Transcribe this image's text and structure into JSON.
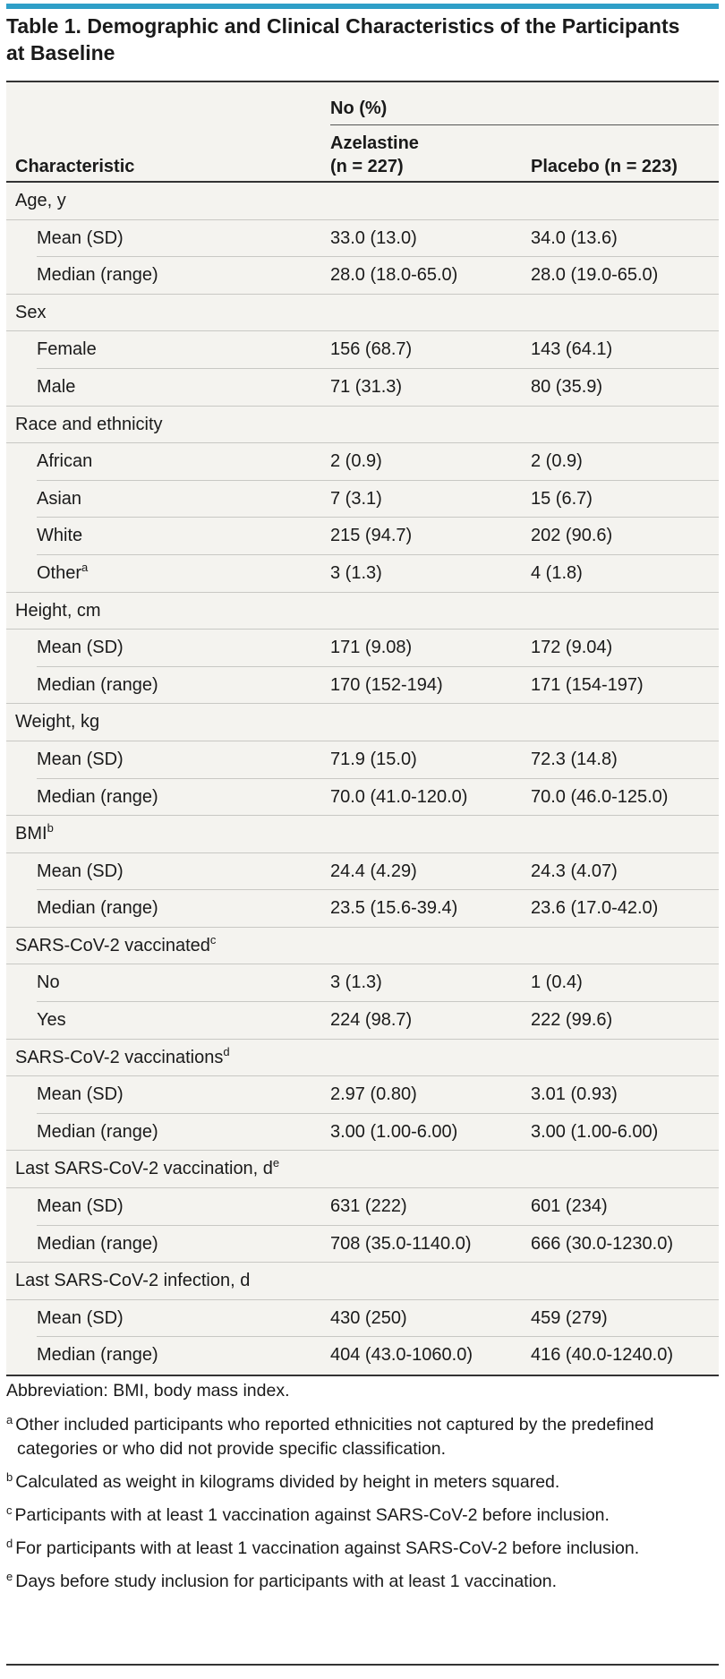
{
  "title": "Table 1. Demographic and Clinical Characteristics of the Participants at Baseline",
  "header": {
    "no_pct": "No (%)",
    "characteristic": "Characteristic",
    "azelastine_line1": "Azelastine",
    "azelastine_line2": "(n = 227)",
    "placebo": "Placebo (n = 223)"
  },
  "groups": [
    {
      "label": "Age, y",
      "sup": "",
      "rows": [
        {
          "label": "Mean (SD)",
          "sup": "",
          "aze": "33.0 (13.0)",
          "pla": "34.0 (13.6)"
        },
        {
          "label": "Median (range)",
          "sup": "",
          "aze": "28.0 (18.0-65.0)",
          "pla": "28.0 (19.0-65.0)"
        }
      ]
    },
    {
      "label": "Sex",
      "sup": "",
      "rows": [
        {
          "label": "Female",
          "sup": "",
          "aze": "156 (68.7)",
          "pla": "143 (64.1)"
        },
        {
          "label": "Male",
          "sup": "",
          "aze": "71 (31.3)",
          "pla": "80 (35.9)"
        }
      ]
    },
    {
      "label": "Race and ethnicity",
      "sup": "",
      "rows": [
        {
          "label": "African",
          "sup": "",
          "aze": "2 (0.9)",
          "pla": "2 (0.9)"
        },
        {
          "label": "Asian",
          "sup": "",
          "aze": "7 (3.1)",
          "pla": "15 (6.7)"
        },
        {
          "label": "White",
          "sup": "",
          "aze": "215 (94.7)",
          "pla": "202 (90.6)"
        },
        {
          "label": "Other",
          "sup": "a",
          "aze": "3 (1.3)",
          "pla": "4 (1.8)"
        }
      ]
    },
    {
      "label": "Height, cm",
      "sup": "",
      "rows": [
        {
          "label": "Mean (SD)",
          "sup": "",
          "aze": "171 (9.08)",
          "pla": "172 (9.04)"
        },
        {
          "label": "Median (range)",
          "sup": "",
          "aze": "170 (152-194)",
          "pla": "171 (154-197)"
        }
      ]
    },
    {
      "label": "Weight, kg",
      "sup": "",
      "rows": [
        {
          "label": "Mean (SD)",
          "sup": "",
          "aze": "71.9 (15.0)",
          "pla": "72.3 (14.8)"
        },
        {
          "label": "Median (range)",
          "sup": "",
          "aze": "70.0 (41.0-120.0)",
          "pla": "70.0 (46.0-125.0)"
        }
      ]
    },
    {
      "label": "BMI",
      "sup": "b",
      "rows": [
        {
          "label": "Mean (SD)",
          "sup": "",
          "aze": "24.4 (4.29)",
          "pla": "24.3 (4.07)"
        },
        {
          "label": "Median (range)",
          "sup": "",
          "aze": "23.5 (15.6-39.4)",
          "pla": "23.6 (17.0-42.0)"
        }
      ]
    },
    {
      "label": "SARS-CoV-2 vaccinated",
      "sup": "c",
      "rows": [
        {
          "label": "No",
          "sup": "",
          "aze": "3 (1.3)",
          "pla": "1 (0.4)"
        },
        {
          "label": "Yes",
          "sup": "",
          "aze": "224 (98.7)",
          "pla": "222 (99.6)"
        }
      ]
    },
    {
      "label": "SARS-CoV-2 vaccinations",
      "sup": "d",
      "rows": [
        {
          "label": "Mean (SD)",
          "sup": "",
          "aze": "2.97 (0.80)",
          "pla": "3.01 (0.93)"
        },
        {
          "label": "Median (range)",
          "sup": "",
          "aze": "3.00 (1.00-6.00)",
          "pla": "3.00 (1.00-6.00)"
        }
      ]
    },
    {
      "label": "Last SARS-CoV-2 vaccination, d",
      "sup": "e",
      "rows": [
        {
          "label": "Mean (SD)",
          "sup": "",
          "aze": "631 (222)",
          "pla": "601 (234)"
        },
        {
          "label": "Median (range)",
          "sup": "",
          "aze": "708 (35.0-1140.0)",
          "pla": "666 (30.0-1230.0)"
        }
      ]
    },
    {
      "label": "Last SARS-CoV-2 infection, d",
      "sup": "",
      "rows": [
        {
          "label": "Mean (SD)",
          "sup": "",
          "aze": "430 (250)",
          "pla": "459 (279)"
        },
        {
          "label": "Median (range)",
          "sup": "",
          "aze": "404 (43.0-1060.0)",
          "pla": "416 (40.0-1240.0)"
        }
      ]
    }
  ],
  "notes": {
    "abbreviation": "Abbreviation: BMI, body mass index.",
    "footnotes": [
      {
        "mark": "a",
        "text": "Other included participants who reported ethnicities not captured by the predefined categories or who did not provide specific classification."
      },
      {
        "mark": "b",
        "text": "Calculated as weight in kilograms divided by height in meters squared."
      },
      {
        "mark": "c",
        "text": "Participants with at least 1 vaccination against SARS-CoV-2 before inclusion."
      },
      {
        "mark": "d",
        "text": "For participants with at least 1 vaccination against SARS-CoV-2 before inclusion."
      },
      {
        "mark": "e",
        "text": "Days before study inclusion for participants with at least 1 vaccination."
      }
    ]
  }
}
